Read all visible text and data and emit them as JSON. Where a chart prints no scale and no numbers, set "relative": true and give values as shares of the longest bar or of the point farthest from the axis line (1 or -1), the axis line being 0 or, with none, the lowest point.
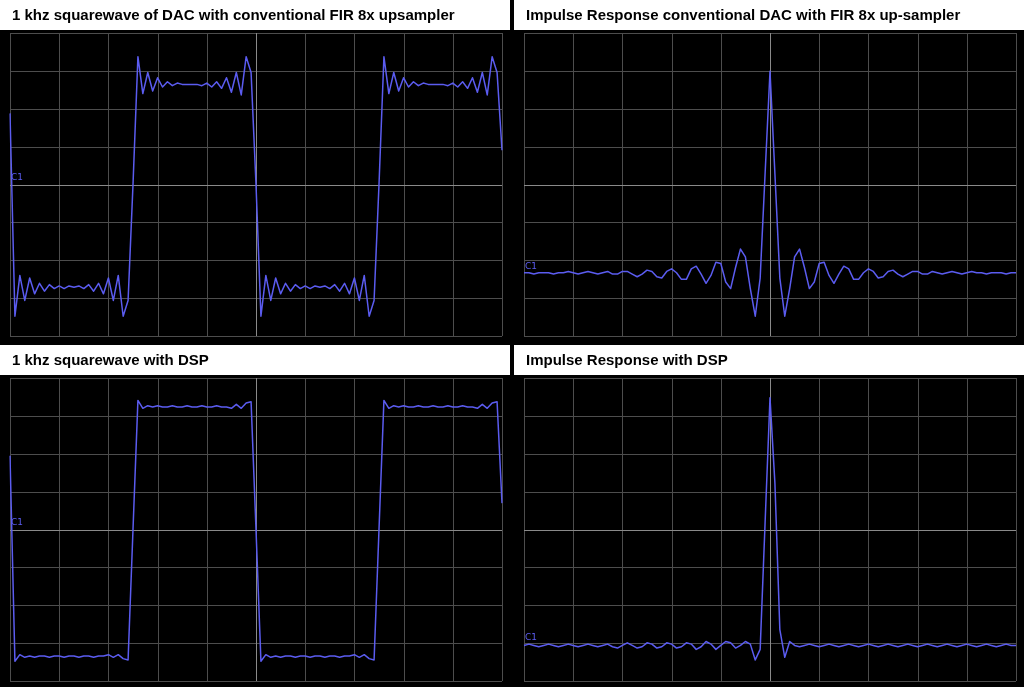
{
  "chart_data": [
    {
      "type": "line",
      "title": "1 khz squarewave of DAC with conventional FIR 8x upsampler",
      "relative": true,
      "grid": true,
      "color": "#5b5cf0",
      "categories": [
        null,
        null,
        null,
        null,
        null,
        null,
        null,
        null,
        null,
        null,
        null,
        null,
        null,
        null,
        null,
        null,
        null,
        null,
        null,
        null,
        null,
        null,
        null,
        null,
        null,
        null,
        null,
        null,
        null,
        null,
        null,
        null,
        null,
        null,
        null,
        null,
        null,
        null,
        null,
        null,
        null,
        null,
        null,
        null,
        null,
        null,
        null,
        null,
        null,
        null,
        null,
        null,
        null,
        null,
        null,
        null,
        null,
        null,
        null,
        null,
        null,
        null,
        null,
        null,
        null,
        null,
        null,
        null,
        null,
        null,
        null,
        null,
        null,
        null,
        null,
        null,
        null,
        null,
        null,
        null,
        null,
        null,
        null,
        null,
        null,
        null,
        null,
        null,
        null,
        null,
        null,
        null,
        null,
        null,
        null,
        null,
        null,
        null,
        null,
        null,
        null
      ],
      "values": [
        0.54,
        -1.0,
        -0.69,
        -0.88,
        -0.71,
        -0.83,
        -0.75,
        -0.81,
        -0.76,
        -0.79,
        -0.77,
        -0.79,
        -0.77,
        -0.78,
        -0.77,
        -0.79,
        -0.76,
        -0.81,
        -0.75,
        -0.83,
        -0.71,
        -0.88,
        -0.69,
        -1.0,
        -0.88,
        0,
        0.97,
        0.69,
        0.85,
        0.71,
        0.81,
        0.74,
        0.78,
        0.75,
        0.77,
        0.76,
        0.76,
        0.76,
        0.76,
        0.75,
        0.77,
        0.74,
        0.78,
        0.73,
        0.81,
        0.7,
        0.85,
        0.68,
        0.97,
        0.85,
        0,
        -1.0,
        -0.69,
        -0.88,
        -0.71,
        -0.83,
        -0.75,
        -0.81,
        -0.76,
        -0.79,
        -0.77,
        -0.79,
        -0.77,
        -0.78,
        -0.77,
        -0.79,
        -0.76,
        -0.81,
        -0.75,
        -0.83,
        -0.71,
        -0.88,
        -0.69,
        -1.0,
        -0.88,
        0,
        0.97,
        0.69,
        0.85,
        0.71,
        0.81,
        0.74,
        0.78,
        0.75,
        0.77,
        0.76,
        0.76,
        0.76,
        0.76,
        0.75,
        0.77,
        0.74,
        0.78,
        0.73,
        0.81,
        0.7,
        0.85,
        0.68,
        0.97,
        0.85,
        0.26
      ],
      "annotations": [
        {
          "text": "C1",
          "y": 0
        }
      ]
    },
    {
      "type": "line",
      "title": "Impulse Response conventional DAC with FIR 8x up-sampler",
      "relative": true,
      "grid": true,
      "color": "#5b5cf0",
      "categories": [
        null,
        null,
        null,
        null,
        null,
        null,
        null,
        null,
        null,
        null,
        null,
        null,
        null,
        null,
        null,
        null,
        null,
        null,
        null,
        null,
        null,
        null,
        null,
        null,
        null,
        null,
        null,
        null,
        null,
        null,
        null,
        null,
        null,
        null,
        null,
        null,
        null,
        null,
        null,
        null,
        null,
        null,
        null,
        null,
        null,
        null,
        null,
        null,
        null,
        null,
        null,
        null,
        null,
        null,
        null,
        null,
        null,
        null,
        null,
        null,
        null,
        null,
        null,
        null,
        null,
        null,
        null,
        null,
        null,
        null,
        null,
        null,
        null,
        null,
        null,
        null,
        null,
        null,
        null,
        null,
        null,
        null,
        null,
        null,
        null,
        null,
        null,
        null,
        null,
        null,
        null,
        null,
        null,
        null,
        null,
        null,
        null,
        null,
        null,
        null,
        null
      ],
      "values": [
        -0.67,
        -0.67,
        -0.68,
        -0.67,
        -0.67,
        -0.67,
        -0.68,
        -0.67,
        -0.67,
        -0.66,
        -0.67,
        -0.68,
        -0.67,
        -0.66,
        -0.67,
        -0.68,
        -0.67,
        -0.66,
        -0.68,
        -0.68,
        -0.66,
        -0.66,
        -0.68,
        -0.7,
        -0.68,
        -0.65,
        -0.66,
        -0.7,
        -0.71,
        -0.66,
        -0.64,
        -0.67,
        -0.72,
        -0.72,
        -0.64,
        -0.62,
        -0.68,
        -0.75,
        -0.69,
        -0.59,
        -0.6,
        -0.74,
        -0.79,
        -0.63,
        -0.49,
        -0.55,
        -0.79,
        -1.0,
        -0.71,
        0.08,
        0.86,
        0.08,
        -0.71,
        -1.0,
        -0.79,
        -0.55,
        -0.49,
        -0.63,
        -0.79,
        -0.74,
        -0.6,
        -0.59,
        -0.69,
        -0.75,
        -0.68,
        -0.62,
        -0.64,
        -0.72,
        -0.72,
        -0.67,
        -0.64,
        -0.66,
        -0.71,
        -0.7,
        -0.66,
        -0.65,
        -0.68,
        -0.7,
        -0.68,
        -0.66,
        -0.66,
        -0.68,
        -0.68,
        -0.66,
        -0.67,
        -0.68,
        -0.67,
        -0.66,
        -0.67,
        -0.68,
        -0.67,
        -0.66,
        -0.67,
        -0.67,
        -0.68,
        -0.67,
        -0.67,
        -0.67,
        -0.68,
        -0.67,
        -0.67
      ],
      "annotations": [
        {
          "text": "C1",
          "y": -0.67
        }
      ]
    },
    {
      "type": "line",
      "title": "1 khz squarewave with DSP",
      "relative": true,
      "grid": true,
      "color": "#5b5cf0",
      "categories": [
        null,
        null,
        null,
        null,
        null,
        null,
        null,
        null,
        null,
        null,
        null,
        null,
        null,
        null,
        null,
        null,
        null,
        null,
        null,
        null,
        null,
        null,
        null,
        null,
        null,
        null,
        null,
        null,
        null,
        null,
        null,
        null,
        null,
        null,
        null,
        null,
        null,
        null,
        null,
        null,
        null,
        null,
        null,
        null,
        null,
        null,
        null,
        null,
        null,
        null,
        null,
        null,
        null,
        null,
        null,
        null,
        null,
        null,
        null,
        null,
        null,
        null,
        null,
        null,
        null,
        null,
        null,
        null,
        null,
        null,
        null,
        null,
        null,
        null,
        null,
        null,
        null,
        null,
        null,
        null,
        null,
        null,
        null,
        null,
        null,
        null,
        null,
        null,
        null,
        null,
        null,
        null,
        null,
        null,
        null,
        null,
        null,
        null,
        null,
        null,
        null
      ],
      "values": [
        0.56,
        -1.0,
        -0.95,
        -0.97,
        -0.96,
        -0.97,
        -0.96,
        -0.96,
        -0.97,
        -0.96,
        -0.96,
        -0.97,
        -0.96,
        -0.96,
        -0.97,
        -0.96,
        -0.96,
        -0.97,
        -0.96,
        -0.96,
        -0.95,
        -0.97,
        -0.95,
        -0.98,
        -0.99,
        0,
        0.98,
        0.92,
        0.94,
        0.93,
        0.94,
        0.93,
        0.93,
        0.94,
        0.93,
        0.93,
        0.94,
        0.93,
        0.93,
        0.94,
        0.93,
        0.93,
        0.94,
        0.93,
        0.93,
        0.92,
        0.95,
        0.92,
        0.96,
        0.97,
        0,
        -1.0,
        -0.95,
        -0.97,
        -0.96,
        -0.97,
        -0.96,
        -0.96,
        -0.97,
        -0.96,
        -0.96,
        -0.97,
        -0.96,
        -0.96,
        -0.97,
        -0.96,
        -0.96,
        -0.97,
        -0.96,
        -0.96,
        -0.95,
        -0.97,
        -0.95,
        -0.98,
        -0.99,
        0,
        0.98,
        0.92,
        0.94,
        0.93,
        0.94,
        0.93,
        0.93,
        0.94,
        0.93,
        0.93,
        0.94,
        0.93,
        0.93,
        0.94,
        0.93,
        0.93,
        0.94,
        0.93,
        0.93,
        0.92,
        0.95,
        0.92,
        0.96,
        0.97,
        0.2
      ],
      "annotations": [
        {
          "text": "C1",
          "y": 0
        }
      ]
    },
    {
      "type": "line",
      "title": "Impulse Response with DSP",
      "relative": true,
      "grid": true,
      "color": "#5b5cf0",
      "categories": [
        null,
        null,
        null,
        null,
        null,
        null,
        null,
        null,
        null,
        null,
        null,
        null,
        null,
        null,
        null,
        null,
        null,
        null,
        null,
        null,
        null,
        null,
        null,
        null,
        null,
        null,
        null,
        null,
        null,
        null,
        null,
        null,
        null,
        null,
        null,
        null,
        null,
        null,
        null,
        null,
        null,
        null,
        null,
        null,
        null,
        null,
        null,
        null,
        null,
        null,
        null,
        null,
        null,
        null,
        null,
        null,
        null,
        null,
        null,
        null,
        null,
        null,
        null,
        null,
        null,
        null,
        null,
        null,
        null,
        null,
        null,
        null,
        null,
        null,
        null,
        null,
        null,
        null,
        null,
        null,
        null,
        null,
        null,
        null,
        null,
        null,
        null,
        null,
        null,
        null,
        null,
        null,
        null,
        null,
        null,
        null,
        null,
        null,
        null,
        null,
        null
      ],
      "values": [
        -0.88,
        -0.87,
        -0.88,
        -0.89,
        -0.88,
        -0.87,
        -0.88,
        -0.89,
        -0.88,
        -0.87,
        -0.88,
        -0.89,
        -0.88,
        -0.87,
        -0.88,
        -0.89,
        -0.88,
        -0.87,
        -0.89,
        -0.9,
        -0.88,
        -0.86,
        -0.88,
        -0.9,
        -0.89,
        -0.86,
        -0.87,
        -0.9,
        -0.89,
        -0.86,
        -0.87,
        -0.9,
        -0.89,
        -0.86,
        -0.87,
        -0.91,
        -0.89,
        -0.85,
        -0.87,
        -0.91,
        -0.88,
        -0.85,
        -0.86,
        -0.9,
        -0.88,
        -0.85,
        -0.87,
        -0.99,
        -0.91,
        0.05,
        1.0,
        0.35,
        -0.76,
        -0.97,
        -0.85,
        -0.88,
        -0.89,
        -0.88,
        -0.87,
        -0.88,
        -0.89,
        -0.88,
        -0.87,
        -0.88,
        -0.89,
        -0.88,
        -0.87,
        -0.88,
        -0.89,
        -0.88,
        -0.87,
        -0.88,
        -0.89,
        -0.88,
        -0.87,
        -0.88,
        -0.89,
        -0.88,
        -0.87,
        -0.88,
        -0.89,
        -0.88,
        -0.87,
        -0.88,
        -0.89,
        -0.88,
        -0.87,
        -0.88,
        -0.89,
        -0.88,
        -0.87,
        -0.88,
        -0.89,
        -0.88,
        -0.87,
        -0.88,
        -0.89,
        -0.88,
        -0.87,
        -0.88,
        -0.88
      ],
      "annotations": [
        {
          "text": "C1",
          "y": -0.87
        }
      ]
    }
  ]
}
